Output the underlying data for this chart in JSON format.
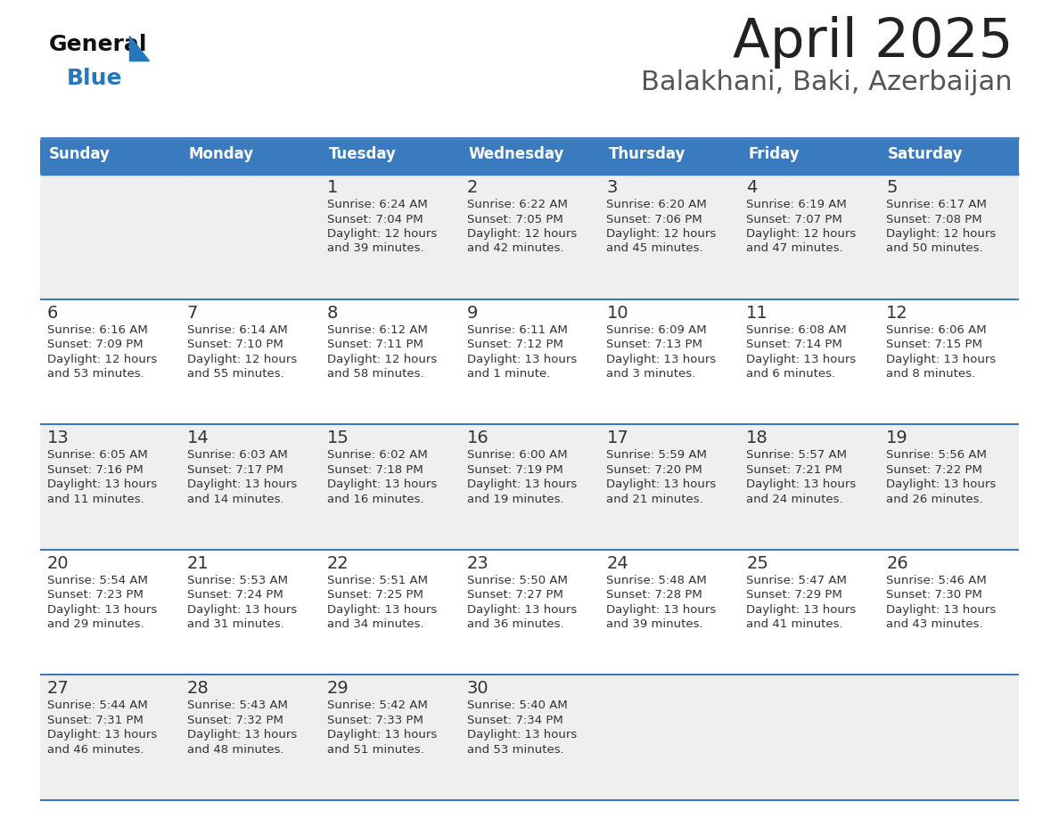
{
  "title": "April 2025",
  "subtitle": "Balakhani, Baki, Azerbaijan",
  "days_of_week": [
    "Sunday",
    "Monday",
    "Tuesday",
    "Wednesday",
    "Thursday",
    "Friday",
    "Saturday"
  ],
  "header_bg": "#3a7abf",
  "header_text": "#ffffff",
  "row_bg": [
    "#efefef",
    "#ffffff",
    "#efefef",
    "#ffffff",
    "#efefef"
  ],
  "cell_text_color": "#333333",
  "divider_color": "#3a7abf",
  "calendar_data": [
    [
      {
        "day": "",
        "sunrise": "",
        "sunset": "",
        "daylight": ""
      },
      {
        "day": "",
        "sunrise": "",
        "sunset": "",
        "daylight": ""
      },
      {
        "day": "1",
        "sunrise": "6:24 AM",
        "sunset": "7:04 PM",
        "daylight": "12 hours\nand 39 minutes."
      },
      {
        "day": "2",
        "sunrise": "6:22 AM",
        "sunset": "7:05 PM",
        "daylight": "12 hours\nand 42 minutes."
      },
      {
        "day": "3",
        "sunrise": "6:20 AM",
        "sunset": "7:06 PM",
        "daylight": "12 hours\nand 45 minutes."
      },
      {
        "day": "4",
        "sunrise": "6:19 AM",
        "sunset": "7:07 PM",
        "daylight": "12 hours\nand 47 minutes."
      },
      {
        "day": "5",
        "sunrise": "6:17 AM",
        "sunset": "7:08 PM",
        "daylight": "12 hours\nand 50 minutes."
      }
    ],
    [
      {
        "day": "6",
        "sunrise": "6:16 AM",
        "sunset": "7:09 PM",
        "daylight": "12 hours\nand 53 minutes."
      },
      {
        "day": "7",
        "sunrise": "6:14 AM",
        "sunset": "7:10 PM",
        "daylight": "12 hours\nand 55 minutes."
      },
      {
        "day": "8",
        "sunrise": "6:12 AM",
        "sunset": "7:11 PM",
        "daylight": "12 hours\nand 58 minutes."
      },
      {
        "day": "9",
        "sunrise": "6:11 AM",
        "sunset": "7:12 PM",
        "daylight": "13 hours\nand 1 minute."
      },
      {
        "day": "10",
        "sunrise": "6:09 AM",
        "sunset": "7:13 PM",
        "daylight": "13 hours\nand 3 minutes."
      },
      {
        "day": "11",
        "sunrise": "6:08 AM",
        "sunset": "7:14 PM",
        "daylight": "13 hours\nand 6 minutes."
      },
      {
        "day": "12",
        "sunrise": "6:06 AM",
        "sunset": "7:15 PM",
        "daylight": "13 hours\nand 8 minutes."
      }
    ],
    [
      {
        "day": "13",
        "sunrise": "6:05 AM",
        "sunset": "7:16 PM",
        "daylight": "13 hours\nand 11 minutes."
      },
      {
        "day": "14",
        "sunrise": "6:03 AM",
        "sunset": "7:17 PM",
        "daylight": "13 hours\nand 14 minutes."
      },
      {
        "day": "15",
        "sunrise": "6:02 AM",
        "sunset": "7:18 PM",
        "daylight": "13 hours\nand 16 minutes."
      },
      {
        "day": "16",
        "sunrise": "6:00 AM",
        "sunset": "7:19 PM",
        "daylight": "13 hours\nand 19 minutes."
      },
      {
        "day": "17",
        "sunrise": "5:59 AM",
        "sunset": "7:20 PM",
        "daylight": "13 hours\nand 21 minutes."
      },
      {
        "day": "18",
        "sunrise": "5:57 AM",
        "sunset": "7:21 PM",
        "daylight": "13 hours\nand 24 minutes."
      },
      {
        "day": "19",
        "sunrise": "5:56 AM",
        "sunset": "7:22 PM",
        "daylight": "13 hours\nand 26 minutes."
      }
    ],
    [
      {
        "day": "20",
        "sunrise": "5:54 AM",
        "sunset": "7:23 PM",
        "daylight": "13 hours\nand 29 minutes."
      },
      {
        "day": "21",
        "sunrise": "5:53 AM",
        "sunset": "7:24 PM",
        "daylight": "13 hours\nand 31 minutes."
      },
      {
        "day": "22",
        "sunrise": "5:51 AM",
        "sunset": "7:25 PM",
        "daylight": "13 hours\nand 34 minutes."
      },
      {
        "day": "23",
        "sunrise": "5:50 AM",
        "sunset": "7:27 PM",
        "daylight": "13 hours\nand 36 minutes."
      },
      {
        "day": "24",
        "sunrise": "5:48 AM",
        "sunset": "7:28 PM",
        "daylight": "13 hours\nand 39 minutes."
      },
      {
        "day": "25",
        "sunrise": "5:47 AM",
        "sunset": "7:29 PM",
        "daylight": "13 hours\nand 41 minutes."
      },
      {
        "day": "26",
        "sunrise": "5:46 AM",
        "sunset": "7:30 PM",
        "daylight": "13 hours\nand 43 minutes."
      }
    ],
    [
      {
        "day": "27",
        "sunrise": "5:44 AM",
        "sunset": "7:31 PM",
        "daylight": "13 hours\nand 46 minutes."
      },
      {
        "day": "28",
        "sunrise": "5:43 AM",
        "sunset": "7:32 PM",
        "daylight": "13 hours\nand 48 minutes."
      },
      {
        "day": "29",
        "sunrise": "5:42 AM",
        "sunset": "7:33 PM",
        "daylight": "13 hours\nand 51 minutes."
      },
      {
        "day": "30",
        "sunrise": "5:40 AM",
        "sunset": "7:34 PM",
        "daylight": "13 hours\nand 53 minutes."
      },
      {
        "day": "",
        "sunrise": "",
        "sunset": "",
        "daylight": ""
      },
      {
        "day": "",
        "sunrise": "",
        "sunset": "",
        "daylight": ""
      },
      {
        "day": "",
        "sunrise": "",
        "sunset": "",
        "daylight": ""
      }
    ]
  ]
}
